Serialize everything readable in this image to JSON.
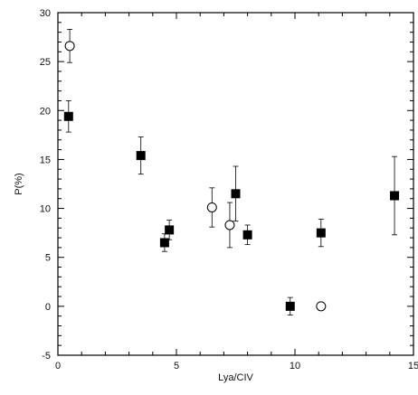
{
  "chart_data": {
    "type": "scatter",
    "xlabel": "Lya/CIV",
    "ylabel": "P(%)",
    "xlim": [
      0,
      15
    ],
    "ylim": [
      -5,
      30
    ],
    "x_ticks": [
      "0",
      "5",
      "10",
      "15"
    ],
    "y_ticks": [
      "-5",
      "0",
      "5",
      "10",
      "15",
      "20",
      "25",
      "30"
    ],
    "grid": false,
    "series": [
      {
        "marker": "filled-square",
        "color": "#000000",
        "points": [
          {
            "x": 0.45,
            "y": 19.4,
            "err": 1.6
          },
          {
            "x": 3.5,
            "y": 15.4,
            "err": 1.9
          },
          {
            "x": 4.5,
            "y": 6.5,
            "err": 0.9
          },
          {
            "x": 4.7,
            "y": 7.8,
            "err": 1.0
          },
          {
            "x": 7.5,
            "y": 11.5,
            "err": 2.8
          },
          {
            "x": 8.0,
            "y": 7.3,
            "err": 1.0
          },
          {
            "x": 9.8,
            "y": 0.0,
            "err": 0.9
          },
          {
            "x": 11.1,
            "y": 7.5,
            "err": 1.4
          },
          {
            "x": 14.2,
            "y": 11.3,
            "err": 4.0
          }
        ]
      },
      {
        "marker": "open-circle",
        "color": "#000000",
        "points": [
          {
            "x": 0.5,
            "y": 26.6,
            "err": 1.7
          },
          {
            "x": 6.5,
            "y": 10.1,
            "err": 2.0
          },
          {
            "x": 7.25,
            "y": 8.3,
            "err": 2.3
          },
          {
            "x": 11.1,
            "y": 0.0,
            "err": 0.0
          }
        ]
      }
    ]
  }
}
